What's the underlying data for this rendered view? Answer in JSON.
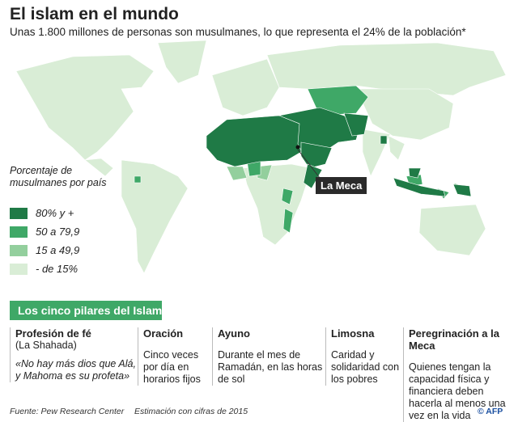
{
  "header": {
    "title": "El islam en el mundo",
    "subtitle": "Unas 1.800 millones de personas son musulmanes, lo que representa el 24% de la población*"
  },
  "map": {
    "legend": {
      "title": "Porcentaje de musulmanes por país",
      "items": [
        {
          "label": "80% y +",
          "color": "#1f7a46"
        },
        {
          "label": "50 a 79,9",
          "color": "#3fa867"
        },
        {
          "label": "15 a 49,9",
          "color": "#93cf9d"
        },
        {
          "label": "- de 15%",
          "color": "#d9edd6"
        }
      ]
    },
    "callout": "La Meca"
  },
  "pillars": {
    "title": "Los cinco pilares del Islam",
    "items": [
      {
        "title": "Profesión de fé",
        "subtitle": "(La Shahada)",
        "text": "«No hay más dios que Alá, y Mahoma es su profeta»"
      },
      {
        "title": "Oración",
        "text": "Cinco veces por día en horarios fijos"
      },
      {
        "title": "Ayuno",
        "text": "Durante el mes de Ramadán, en las horas de sol"
      },
      {
        "title": "Limosna",
        "text": "Caridad y solidaridad con los pobres"
      },
      {
        "title": "Peregrinación a la Meca",
        "text": "Quienes tengan la capacidad física y financiera deben hacerla al menos una vez en la vida"
      }
    ]
  },
  "footer": {
    "source": "Fuente: Pew Research Center",
    "note": "Estimación con cifras de 2015",
    "credit": "© AFP"
  }
}
